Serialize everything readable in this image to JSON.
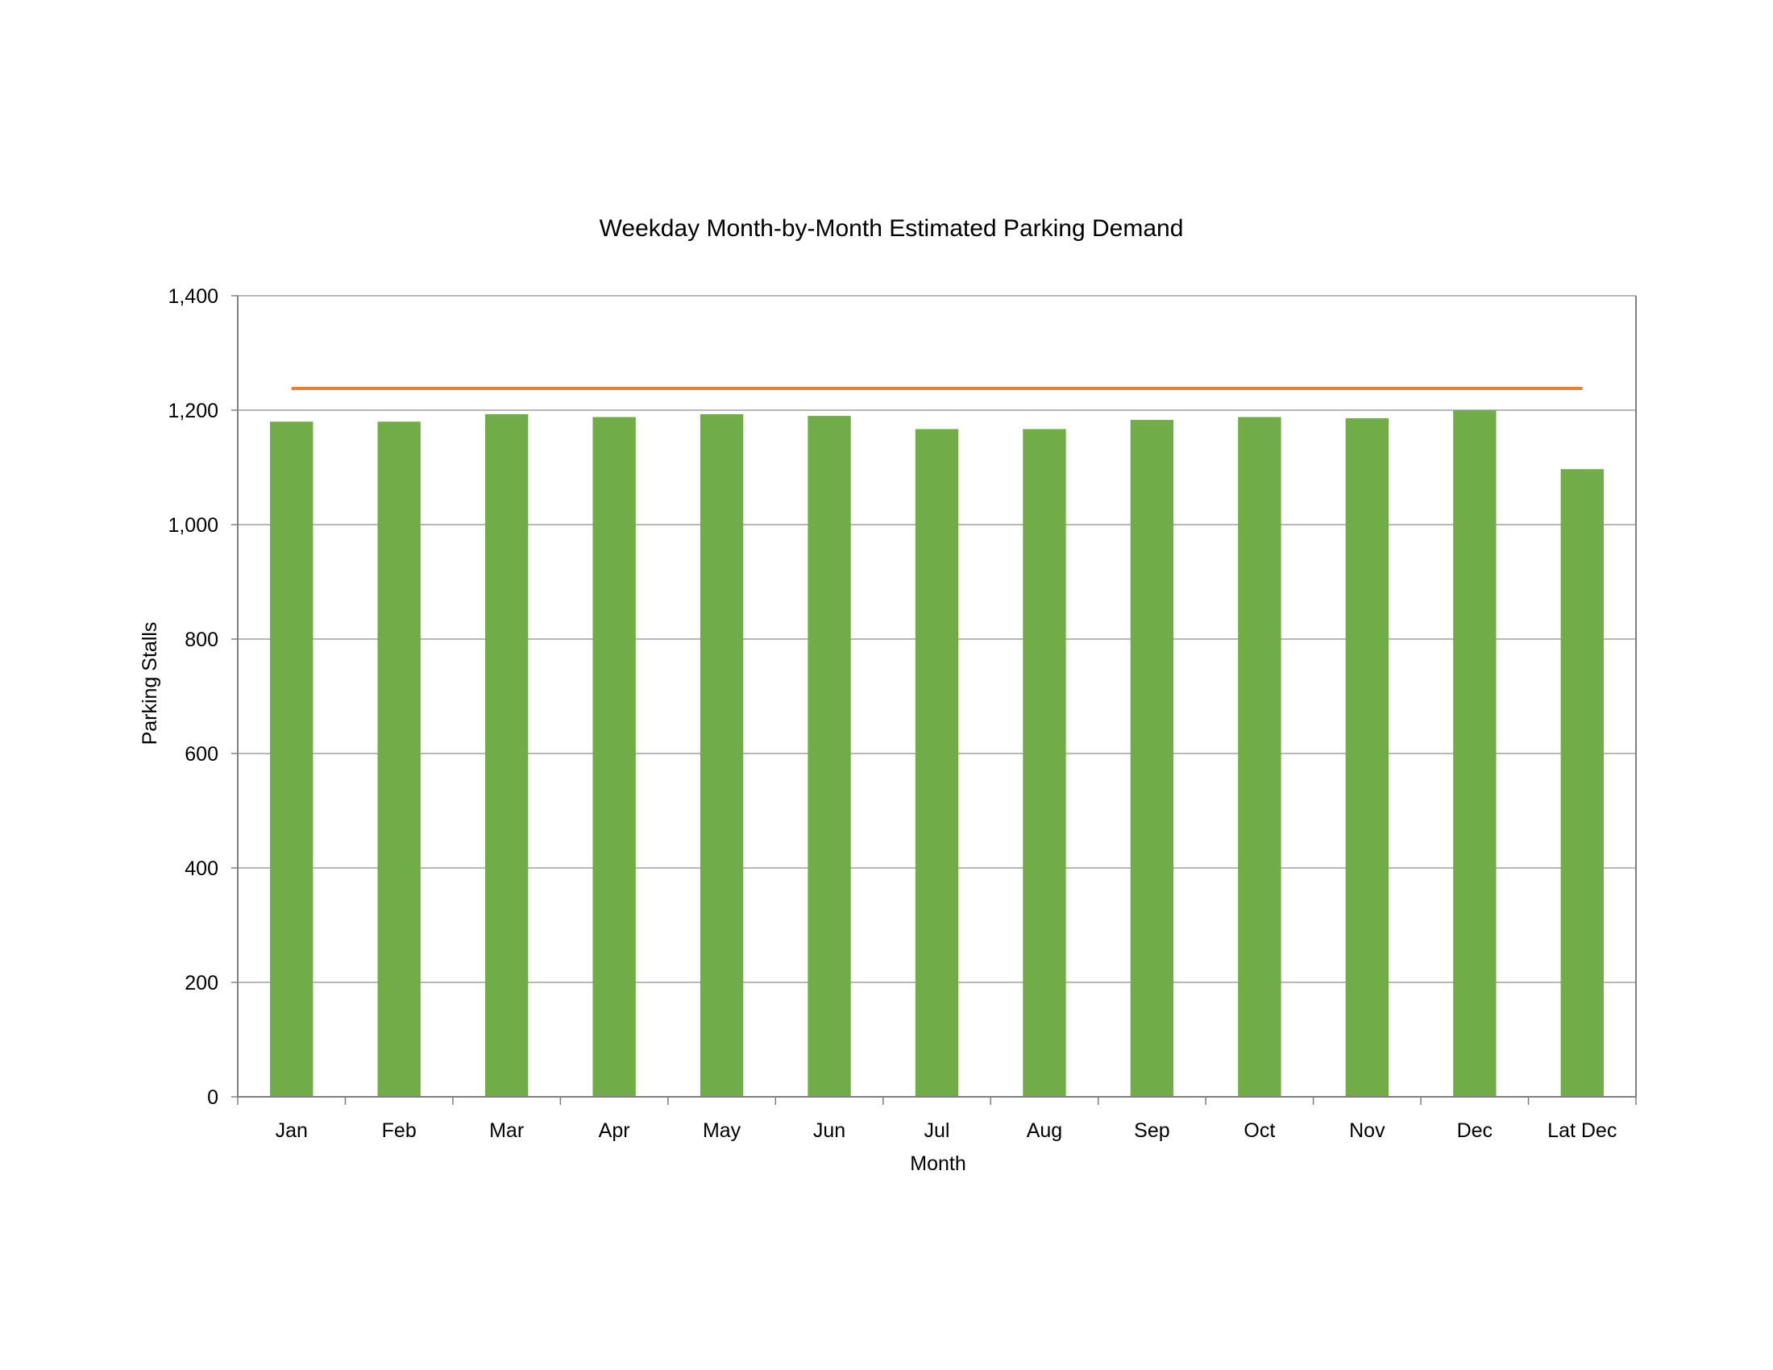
{
  "chart_data": {
    "type": "bar",
    "title": "Weekday Month-by-Month Estimated Parking Demand",
    "xlabel": "Month",
    "ylabel": "Parking Stalls",
    "categories": [
      "Jan",
      "Feb",
      "Mar",
      "Apr",
      "May",
      "Jun",
      "Jul",
      "Aug",
      "Sep",
      "Oct",
      "Nov",
      "Dec",
      "Lat Dec"
    ],
    "series": [
      {
        "type": "bar",
        "color": "#70AD47",
        "values": [
          1180,
          1180,
          1193,
          1188,
          1193,
          1190,
          1167,
          1167,
          1183,
          1188,
          1186,
          1200,
          1097
        ]
      },
      {
        "type": "line",
        "color": "#ED7D31",
        "values": [
          1238,
          1238,
          1238,
          1238,
          1238,
          1238,
          1238,
          1238,
          1238,
          1238,
          1238,
          1238,
          1238
        ]
      }
    ],
    "ylim": [
      0,
      1400
    ],
    "y_ticks": [
      0,
      200,
      400,
      600,
      800,
      1000,
      1200,
      1400
    ],
    "y_tick_labels": [
      "0",
      "200",
      "400",
      "600",
      "800",
      "1,000",
      "1,200",
      "1,400"
    ],
    "grid": true,
    "legend": "none",
    "gridline_color": "#8C8C8C",
    "axis_color": "#7F7F7F"
  }
}
